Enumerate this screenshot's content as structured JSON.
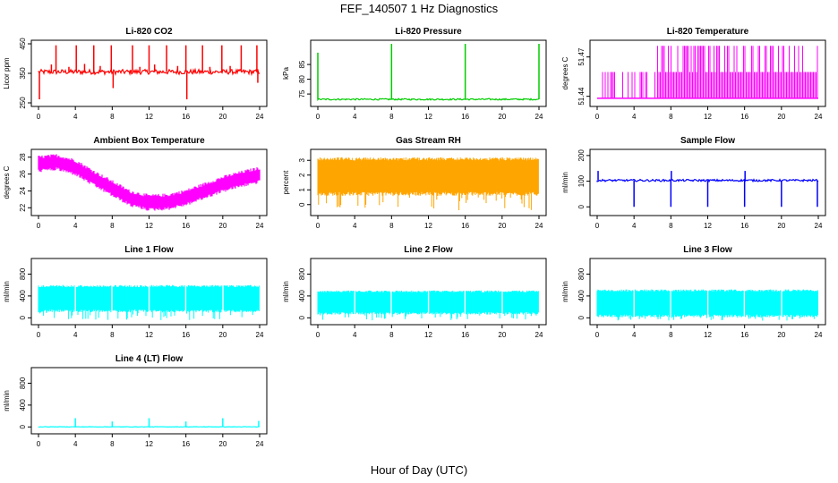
{
  "page": {
    "title": "FEF_140507  1 Hz Diagnostics",
    "x_caption": "Hour of Day (UTC)"
  },
  "chart_data": [
    {
      "type": "line",
      "title": "Li-820 CO2",
      "xlabel": "",
      "ylabel": "Licor ppm",
      "xlim": [
        0,
        24
      ],
      "ylim": [
        250,
        450
      ],
      "x_ticks": [
        "0",
        "4",
        "8",
        "12",
        "16",
        "20",
        "24"
      ],
      "y_ticks": [
        "250",
        "350",
        "450"
      ],
      "series": [
        {
          "color": "#ff0000",
          "baseline": 355,
          "noise": 8,
          "spikes": [
            [
              0.1,
              262
            ],
            [
              1.4,
              380
            ],
            [
              1.9,
              445
            ],
            [
              3.3,
              372
            ],
            [
              4.1,
              445
            ],
            [
              5.0,
              382
            ],
            [
              6.0,
              445
            ],
            [
              6.7,
              375
            ],
            [
              7.9,
              445
            ],
            [
              8.1,
              300
            ],
            [
              10.2,
              445
            ],
            [
              11.0,
              372
            ],
            [
              12.0,
              445
            ],
            [
              12.6,
              380
            ],
            [
              13.9,
              445
            ],
            [
              15.1,
              375
            ],
            [
              16.0,
              445
            ],
            [
              16.1,
              262
            ],
            [
              17.8,
              445
            ],
            [
              18.6,
              372
            ],
            [
              19.9,
              445
            ],
            [
              20.8,
              375
            ],
            [
              22.0,
              445
            ],
            [
              23.7,
              445
            ],
            [
              23.8,
              318
            ]
          ]
        }
      ]
    },
    {
      "type": "line",
      "title": "Li-820 Pressure",
      "xlabel": "",
      "ylabel": "kPa",
      "xlim": [
        0,
        24
      ],
      "ylim": [
        72,
        92
      ],
      "x_ticks": [
        "0",
        "4",
        "8",
        "12",
        "16",
        "20",
        "24"
      ],
      "y_ticks": [
        "75",
        "80",
        "85"
      ],
      "series": [
        {
          "color": "#00cc00",
          "baseline": 73.2,
          "noise": 0.25,
          "spikes": [
            [
              0.0,
              89
            ],
            [
              8.0,
              92
            ],
            [
              16.0,
              92
            ],
            [
              24.0,
              92
            ]
          ]
        }
      ]
    },
    {
      "type": "line",
      "title": "Li-820 Temperature",
      "xlabel": "",
      "ylabel": "degrees C",
      "xlim": [
        0,
        24
      ],
      "ylim": [
        51.435,
        51.48
      ],
      "x_ticks": [
        "0",
        "4",
        "8",
        "12",
        "16",
        "20",
        "24"
      ],
      "y_ticks": [
        "51.44",
        "51.47"
      ],
      "series": [
        {
          "color": "#ff00ff",
          "levels": [
            51.4385,
            51.4585,
            51.4785
          ]
        }
      ]
    },
    {
      "type": "line",
      "title": "Ambient Box Temperature",
      "xlabel": "",
      "ylabel": "degrees C",
      "xlim": [
        0,
        24
      ],
      "ylim": [
        21.5,
        28.5
      ],
      "x_ticks": [
        "0",
        "4",
        "8",
        "12",
        "16",
        "20",
        "24"
      ],
      "y_ticks": [
        "22",
        "24",
        "26",
        "28"
      ],
      "series": [
        {
          "color": "#ff00ff",
          "points": [
            [
              0,
              27.2
            ],
            [
              2,
              27.4
            ],
            [
              4,
              26.8
            ],
            [
              6,
              25.5
            ],
            [
              8,
              24.3
            ],
            [
              10,
              23.1
            ],
            [
              12,
              22.6
            ],
            [
              14,
              22.7
            ],
            [
              16,
              23.2
            ],
            [
              18,
              24.0
            ],
            [
              20,
              24.8
            ],
            [
              22,
              25.4
            ],
            [
              24,
              25.9
            ]
          ]
        }
      ]
    },
    {
      "type": "line",
      "title": "Gas Stream RH",
      "xlabel": "",
      "ylabel": "percent",
      "xlim": [
        0,
        24
      ],
      "ylim": [
        -0.5,
        3.5
      ],
      "x_ticks": [
        "0",
        "4",
        "8",
        "12",
        "16",
        "20",
        "24"
      ],
      "y_ticks": [
        "0",
        "1",
        "2",
        "3"
      ],
      "series": [
        {
          "color": "#ffa500",
          "top": 3.2,
          "bottom": 0.6
        }
      ]
    },
    {
      "type": "line",
      "title": "Sample Flow",
      "xlabel": "",
      "ylabel": "ml/min",
      "xlim": [
        0,
        24
      ],
      "ylim": [
        -20,
        210
      ],
      "x_ticks": [
        "0",
        "4",
        "8",
        "12",
        "16",
        "20",
        "24"
      ],
      "y_ticks": [
        "0",
        "100",
        "200"
      ],
      "series": [
        {
          "color": "#0000ff",
          "baseline": 103,
          "noise": 4,
          "spikes": [
            [
              0.1,
              140
            ],
            [
              4.0,
              0
            ],
            [
              8.0,
              0
            ],
            [
              8.05,
              140
            ],
            [
              12.0,
              0
            ],
            [
              16.0,
              0
            ],
            [
              16.05,
              140
            ],
            [
              20.0,
              0
            ],
            [
              23.9,
              0
            ]
          ]
        }
      ]
    },
    {
      "type": "area",
      "title": "Line 1 Flow",
      "xlabel": "",
      "ylabel": "ml/min",
      "xlim": [
        0,
        24
      ],
      "ylim": [
        -60,
        1020
      ],
      "x_ticks": [
        "0",
        "4",
        "8",
        "12",
        "16",
        "20",
        "24"
      ],
      "y_ticks": [
        "0",
        "400",
        "800"
      ],
      "series": [
        {
          "color": "#00ffff",
          "top": 600,
          "bottom": 100,
          "gaps": [
            4,
            8,
            12,
            16,
            20
          ]
        }
      ]
    },
    {
      "type": "area",
      "title": "Line 2 Flow",
      "xlabel": "",
      "ylabel": "ml/min",
      "xlim": [
        0,
        24
      ],
      "ylim": [
        -60,
        1020
      ],
      "x_ticks": [
        "0",
        "4",
        "8",
        "12",
        "16",
        "20",
        "24"
      ],
      "y_ticks": [
        "0",
        "400",
        "800"
      ],
      "series": [
        {
          "color": "#00ffff",
          "top": 500,
          "bottom": 60,
          "gaps": [
            4,
            8,
            12,
            16,
            20
          ]
        }
      ]
    },
    {
      "type": "area",
      "title": "Line 3 Flow",
      "xlabel": "",
      "ylabel": "ml/min",
      "xlim": [
        0,
        24
      ],
      "ylim": [
        -60,
        1020
      ],
      "x_ticks": [
        "0",
        "4",
        "8",
        "12",
        "16",
        "20",
        "24"
      ],
      "y_ticks": [
        "0",
        "400",
        "800"
      ],
      "series": [
        {
          "color": "#00ffff",
          "top": 520,
          "bottom": 10,
          "gaps": [
            4,
            8,
            12,
            16,
            20
          ]
        }
      ]
    },
    {
      "type": "line",
      "title": "Line 4 (LT) Flow",
      "xlabel": "",
      "ylabel": "ml/min",
      "xlim": [
        0,
        24
      ],
      "ylim": [
        -60,
        1020
      ],
      "x_ticks": [
        "0",
        "4",
        "8",
        "12",
        "16",
        "20",
        "24"
      ],
      "y_ticks": [
        "0",
        "400",
        "800"
      ],
      "series": [
        {
          "color": "#00ffff",
          "baseline": 2,
          "noise": 4,
          "spikes": [
            [
              4.0,
              160
            ],
            [
              8.0,
              100
            ],
            [
              12.0,
              160
            ],
            [
              16.0,
              100
            ],
            [
              20.0,
              160
            ],
            [
              23.9,
              110
            ]
          ]
        }
      ]
    }
  ]
}
